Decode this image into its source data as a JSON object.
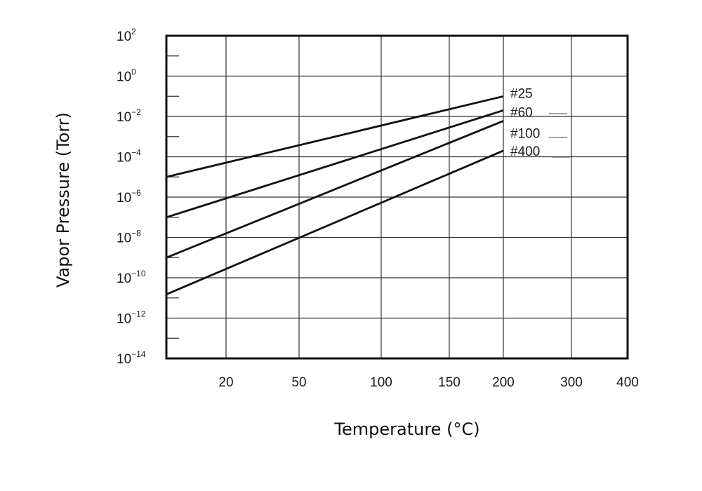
{
  "chart_data": {
    "type": "line",
    "xlabel": "Temperature (°C)",
    "ylabel": "Vapor Pressure (Torr)",
    "x_ticks": [
      {
        "value": 20,
        "label": "20"
      },
      {
        "value": 50,
        "label": "50"
      },
      {
        "value": 100,
        "label": "100"
      },
      {
        "value": 150,
        "label": "150"
      },
      {
        "value": 200,
        "label": "200"
      },
      {
        "value": 300,
        "label": "300"
      },
      {
        "value": 400,
        "label": "400"
      }
    ],
    "y_ticks": [
      {
        "value": 2,
        "base": "10",
        "exp": "2"
      },
      {
        "value": 0,
        "base": "10",
        "exp": "0"
      },
      {
        "value": -2,
        "base": "10",
        "exp": "−2"
      },
      {
        "value": -4,
        "base": "10",
        "exp": "−4"
      },
      {
        "value": -6,
        "base": "10",
        "exp": "−6"
      },
      {
        "value": -8,
        "base": "10",
        "exp": "−8"
      },
      {
        "value": -10,
        "base": "10",
        "exp": "−10"
      },
      {
        "value": -12,
        "base": "10",
        "exp": "−12"
      },
      {
        "value": -14,
        "base": "10",
        "exp": "−14"
      }
    ],
    "y_scale": "log",
    "grid": true,
    "series": [
      {
        "name": "#25",
        "x": [
          0,
          200
        ],
        "y": [
          1e-05,
          0.1
        ]
      },
      {
        "name": "#60",
        "x": [
          0,
          200
        ],
        "y": [
          1e-07,
          0.02
        ]
      },
      {
        "name": "#100",
        "x": [
          0,
          200
        ],
        "y": [
          1e-09,
          0.006
        ]
      },
      {
        "name": "#400",
        "x": [
          0,
          200
        ],
        "y": [
          1.5e-11,
          0.0002
        ]
      }
    ],
    "colors": {
      "line": "#111111",
      "grid": "#333333",
      "frame": "#111111"
    }
  }
}
